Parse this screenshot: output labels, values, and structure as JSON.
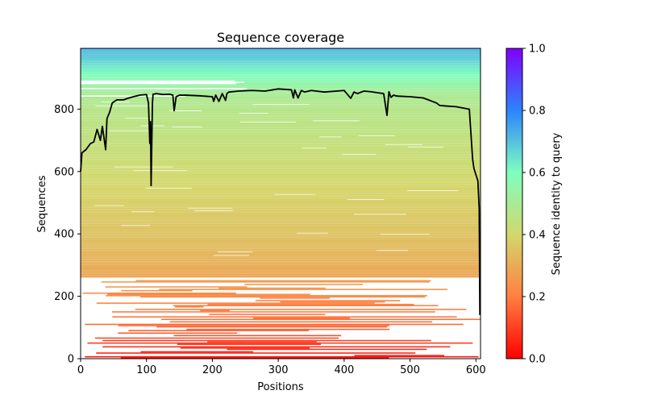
{
  "chart_data": {
    "type": "heatmap",
    "title": "Sequence coverage",
    "xlabel": "Positions",
    "ylabel": "Sequences",
    "colorbar_label": "Sequence identity to query",
    "xlim": [
      0,
      607
    ],
    "ylim": [
      0,
      995
    ],
    "xticks": [
      0,
      100,
      200,
      300,
      400,
      500,
      600
    ],
    "yticks": [
      0,
      200,
      400,
      600,
      800
    ],
    "colorbar_ticks": [
      "0.0",
      "0.2",
      "0.4",
      "0.6",
      "0.8",
      "1.0"
    ],
    "colorbar_range": [
      0,
      1
    ],
    "colormap": "rainbow_r",
    "colormap_stops": [
      "#ff0000",
      "#ff7f41",
      "#d3d86c",
      "#7ffebf",
      "#2c84fc",
      "#7f00ff"
    ],
    "identity_by_sequence": {
      "sequence": [
        0,
        100,
        200,
        250,
        300,
        400,
        500,
        600,
        700,
        800,
        850,
        900,
        950,
        995
      ],
      "identity": [
        0.02,
        0.16,
        0.22,
        0.27,
        0.31,
        0.35,
        0.38,
        0.41,
        0.44,
        0.47,
        0.5,
        0.58,
        0.66,
        0.72
      ]
    },
    "coverage_line": {
      "name": "coverage",
      "color": "#000000",
      "x": [
        0,
        2,
        8,
        15,
        20,
        25,
        30,
        33,
        36,
        38,
        40,
        44,
        48,
        55,
        65,
        72,
        80,
        90,
        100,
        103,
        105,
        106,
        107,
        109,
        110,
        115,
        125,
        135,
        140,
        142,
        145,
        150,
        160,
        180,
        200,
        202,
        205,
        210,
        215,
        220,
        222,
        225,
        240,
        260,
        280,
        300,
        320,
        323,
        325,
        330,
        335,
        340,
        350,
        370,
        400,
        410,
        415,
        420,
        430,
        440,
        460,
        465,
        468,
        471,
        475,
        480,
        500,
        520,
        540,
        545,
        555,
        570,
        590,
        595,
        597,
        600,
        603,
        605,
        606
      ],
      "y": [
        600,
        660,
        670,
        690,
        695,
        735,
        700,
        745,
        700,
        670,
        770,
        790,
        820,
        830,
        830,
        835,
        840,
        845,
        847,
        820,
        690,
        760,
        555,
        820,
        848,
        850,
        847,
        848,
        845,
        795,
        840,
        845,
        845,
        843,
        840,
        825,
        845,
        825,
        850,
        828,
        850,
        855,
        858,
        860,
        858,
        865,
        862,
        836,
        862,
        836,
        860,
        855,
        860,
        855,
        860,
        835,
        855,
        850,
        858,
        856,
        850,
        780,
        856,
        838,
        845,
        842,
        840,
        836,
        820,
        812,
        810,
        808,
        800,
        640,
        610,
        590,
        570,
        480,
        140
      ]
    }
  }
}
